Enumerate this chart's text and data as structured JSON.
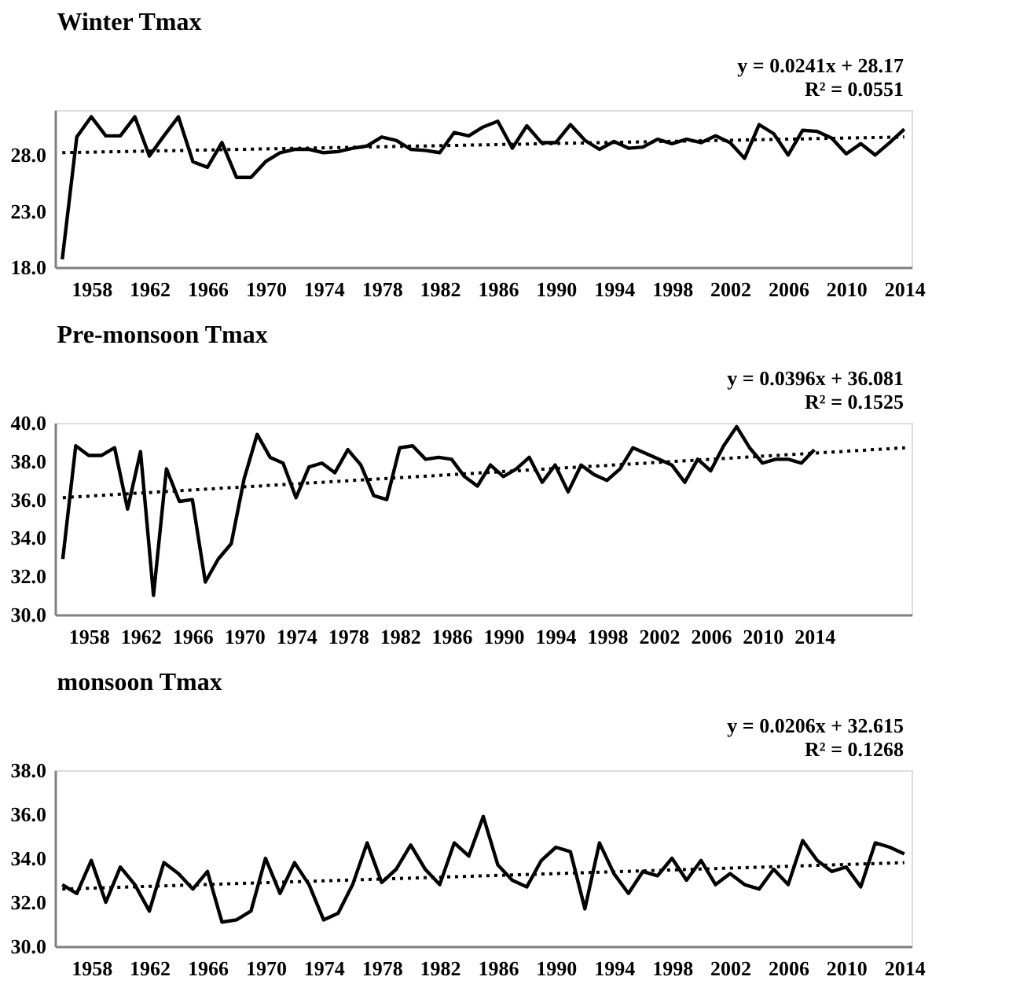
{
  "chart_data": [
    {
      "type": "line",
      "title": "Winter Tmax",
      "annotations": [
        "y = 0.0241x + 28.17",
        "R² = 0.0551"
      ],
      "grid": false,
      "line_style": "solid",
      "x": [
        1956,
        1957,
        1958,
        1959,
        1960,
        1961,
        1962,
        1963,
        1964,
        1965,
        1966,
        1967,
        1968,
        1969,
        1970,
        1971,
        1972,
        1973,
        1974,
        1975,
        1976,
        1977,
        1978,
        1979,
        1980,
        1981,
        1982,
        1983,
        1984,
        1985,
        1986,
        1987,
        1988,
        1989,
        1990,
        1991,
        1992,
        1993,
        1994,
        1995,
        1996,
        1997,
        1998,
        1999,
        2000,
        2001,
        2002,
        2003,
        2004,
        2005,
        2006,
        2007,
        2008,
        2009,
        2010,
        2011,
        2012,
        2013,
        2014
      ],
      "xlim": [
        1955.5,
        2014.5
      ],
      "xticks": [
        1958,
        1962,
        1966,
        1970,
        1974,
        1978,
        1982,
        1986,
        1990,
        1994,
        1998,
        2002,
        2006,
        2010,
        2014
      ],
      "ylim": [
        18,
        32
      ],
      "yticks": [
        {
          "value": 18,
          "label": "18.0"
        },
        {
          "value": 23,
          "label": "23.0"
        },
        {
          "value": 28,
          "label": "28.0"
        }
      ],
      "series": [
        {
          "color": "#000000",
          "values": [
            18.7,
            29.6,
            31.4,
            29.7,
            29.7,
            31.4,
            27.9,
            29.7,
            31.4,
            27.4,
            26.9,
            29.1,
            26.0,
            26.0,
            27.4,
            28.2,
            28.5,
            28.5,
            28.2,
            28.3,
            28.6,
            28.8,
            29.6,
            29.3,
            28.5,
            28.4,
            28.2,
            30.0,
            29.7,
            30.5,
            31.0,
            28.6,
            30.6,
            29.1,
            29.1,
            30.7,
            29.3,
            28.5,
            29.2,
            28.6,
            28.7,
            29.4,
            29.0,
            29.4,
            29.1,
            29.7,
            29.1,
            27.7,
            30.7,
            29.9,
            28.0,
            30.2,
            30.1,
            29.5,
            28.1,
            29.0,
            28.0,
            29.1,
            30.3
          ]
        },
        {
          "type": "line",
          "line_style": "dotted",
          "color": "#000000",
          "x": [
            1956,
            2014
          ],
          "values": [
            28.2,
            29.6
          ]
        }
      ]
    },
    {
      "type": "line",
      "title": "Pre-monsoon Tmax",
      "annotations": [
        "y = 0.0396x + 36.081",
        "R² = 0.1525"
      ],
      "grid": false,
      "line_style": "solid",
      "x": [
        1956,
        1957,
        1958,
        1959,
        1960,
        1961,
        1962,
        1963,
        1964,
        1965,
        1966,
        1967,
        1968,
        1969,
        1970,
        1971,
        1972,
        1973,
        1974,
        1975,
        1976,
        1977,
        1978,
        1979,
        1980,
        1981,
        1982,
        1983,
        1984,
        1985,
        1986,
        1987,
        1988,
        1989,
        1990,
        1991,
        1992,
        1993,
        1994,
        1995,
        1996,
        1997,
        1998,
        1999,
        2000,
        2001,
        2002,
        2003,
        2004,
        2005,
        2006,
        2007,
        2008,
        2009,
        2010,
        2011,
        2012,
        2013,
        2014
      ],
      "xlim": [
        1955.4,
        2021.5
      ],
      "xticks": [
        1958,
        1962,
        1966,
        1970,
        1974,
        1978,
        1982,
        1986,
        1990,
        1994,
        1998,
        2002,
        2006,
        2010,
        2014
      ],
      "ylim": [
        30,
        40
      ],
      "yticks": [
        {
          "value": 30,
          "label": "30.0"
        },
        {
          "value": 32,
          "label": "32.0"
        },
        {
          "value": 34,
          "label": "34.0"
        },
        {
          "value": 36,
          "label": "36.0"
        },
        {
          "value": 38,
          "label": "38.0"
        },
        {
          "value": 40,
          "label": "40.0"
        }
      ],
      "series": [
        {
          "color": "#000000",
          "values": [
            32.9,
            38.8,
            38.3,
            38.3,
            38.7,
            35.5,
            38.5,
            31.0,
            37.6,
            35.9,
            36.0,
            31.7,
            32.9,
            33.7,
            37.1,
            39.4,
            38.2,
            37.9,
            36.1,
            37.7,
            37.9,
            37.4,
            38.6,
            37.8,
            36.2,
            36.0,
            38.7,
            38.8,
            38.1,
            38.2,
            38.1,
            37.2,
            36.7,
            37.8,
            37.2,
            37.6,
            38.2,
            36.9,
            37.8,
            36.4,
            37.8,
            37.3,
            37.0,
            37.6,
            38.7,
            38.4,
            38.1,
            37.8,
            36.9,
            38.1,
            37.5,
            38.8,
            39.8,
            38.7,
            37.9,
            38.1,
            38.1,
            37.9,
            38.6
          ]
        },
        {
          "type": "line",
          "line_style": "dotted",
          "color": "#000000",
          "x": [
            1956,
            2021
          ],
          "values": [
            36.1,
            38.7
          ]
        }
      ]
    },
    {
      "type": "line",
      "title": "monsoon Tmax",
      "annotations": [
        "y = 0.0206x + 32.615",
        "R² = 0.1268"
      ],
      "grid": false,
      "line_style": "solid",
      "x": [
        1956,
        1957,
        1958,
        1959,
        1960,
        1961,
        1962,
        1963,
        1964,
        1965,
        1966,
        1967,
        1968,
        1969,
        1970,
        1971,
        1972,
        1973,
        1974,
        1975,
        1976,
        1977,
        1978,
        1979,
        1980,
        1981,
        1982,
        1983,
        1984,
        1985,
        1986,
        1987,
        1988,
        1989,
        1990,
        1991,
        1992,
        1993,
        1994,
        1995,
        1996,
        1997,
        1998,
        1999,
        2000,
        2001,
        2002,
        2003,
        2004,
        2005,
        2006,
        2007,
        2008,
        2009,
        2010,
        2011,
        2012,
        2013,
        2014
      ],
      "xlim": [
        1955.5,
        2014.5
      ],
      "xticks": [
        1958,
        1962,
        1966,
        1970,
        1974,
        1978,
        1982,
        1986,
        1990,
        1994,
        1998,
        2002,
        2006,
        2010,
        2014
      ],
      "ylim": [
        30,
        38
      ],
      "yticks": [
        {
          "value": 30,
          "label": "30.0"
        },
        {
          "value": 32,
          "label": "32.0"
        },
        {
          "value": 34,
          "label": "34.0"
        },
        {
          "value": 36,
          "label": "36.0"
        },
        {
          "value": 38,
          "label": "38.0"
        }
      ],
      "series": [
        {
          "color": "#000000",
          "values": [
            32.8,
            32.4,
            33.9,
            32.0,
            33.6,
            32.8,
            31.6,
            33.8,
            33.3,
            32.6,
            33.4,
            31.1,
            31.2,
            31.6,
            34.0,
            32.4,
            33.8,
            32.8,
            31.2,
            31.5,
            32.8,
            34.7,
            32.9,
            33.5,
            34.6,
            33.5,
            32.8,
            34.7,
            34.1,
            35.9,
            33.7,
            33.0,
            32.7,
            33.9,
            34.5,
            34.3,
            31.7,
            34.7,
            33.3,
            32.4,
            33.4,
            33.2,
            34.0,
            33.0,
            33.9,
            32.8,
            33.3,
            32.8,
            32.6,
            33.5,
            32.8,
            34.8,
            33.9,
            33.4,
            33.6,
            32.7,
            34.7,
            34.5,
            34.2
          ]
        },
        {
          "type": "line",
          "line_style": "dotted",
          "color": "#000000",
          "x": [
            1956,
            2014
          ],
          "values": [
            32.6,
            33.8
          ]
        }
      ]
    }
  ]
}
